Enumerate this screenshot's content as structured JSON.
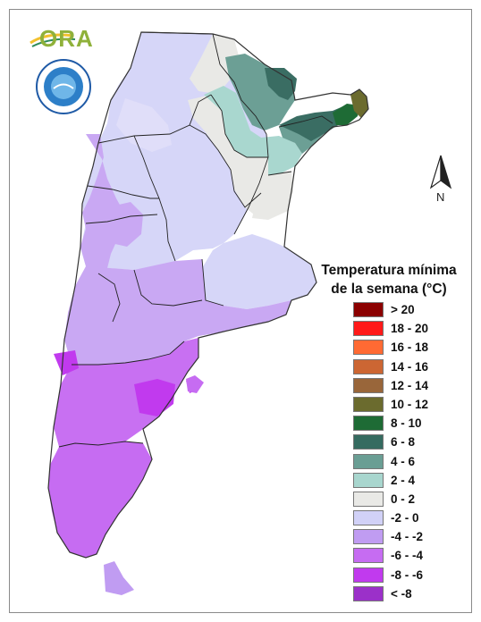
{
  "logo": {
    "text": "ORA",
    "icon": "ora-logo"
  },
  "seal": {
    "icon": "smn-seal-icon"
  },
  "north_arrow": {
    "label": "N",
    "icon": "north-arrow-icon"
  },
  "legend": {
    "title_line1": "Temperatura mínima",
    "title_line2": "de la semana (°C)",
    "items": [
      {
        "label": "> 20",
        "color": "#8b0000"
      },
      {
        "label": "18 - 20",
        "color": "#ff1a1a"
      },
      {
        "label": "16 - 18",
        "color": "#ff6a33"
      },
      {
        "label": "14 - 16",
        "color": "#cc6633"
      },
      {
        "label": "12 - 14",
        "color": "#99663a"
      },
      {
        "label": "10 - 12",
        "color": "#6b6b2e"
      },
      {
        "label": "8 - 10",
        "color": "#1e6b35"
      },
      {
        "label": "6 - 8",
        "color": "#356b60"
      },
      {
        "label": "4 - 6",
        "color": "#6a9e94"
      },
      {
        "label": "2 - 4",
        "color": "#a8d6ce"
      },
      {
        "label": "0 - 2",
        "color": "#e9e9e6"
      },
      {
        "label": "-2 - 0",
        "color": "#d1d1f7"
      },
      {
        "label": "-4 - -2",
        "color": "#c09cf2"
      },
      {
        "label": "-6 - -4",
        "color": "#c66cf2"
      },
      {
        "label": "-8 - -6",
        "color": "#c13aee"
      },
      {
        "label": "< -8",
        "color": "#9b30c9"
      }
    ]
  }
}
